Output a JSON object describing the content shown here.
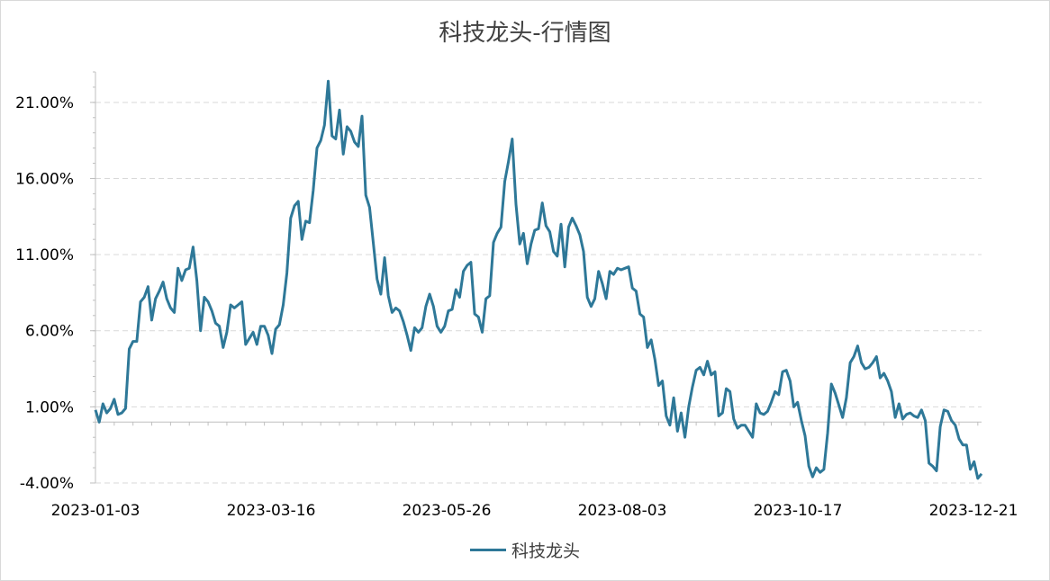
{
  "chart_data": {
    "type": "line",
    "title": "科技龙头-行情图",
    "y_ticks": [
      "21.00%",
      "16.00%",
      "11.00%",
      "6.00%",
      "1.00%",
      "-4.00%"
    ],
    "y_values": [
      21,
      16,
      11,
      6,
      1,
      -4
    ],
    "ylim": [
      -4,
      23
    ],
    "x_ticks": [
      "2023-01-03",
      "2023-03-16",
      "2023-05-26",
      "2023-08-03",
      "2023-10-17",
      "2023-12-21"
    ],
    "grid": true,
    "legend_position": "bottom",
    "series": [
      {
        "name": "科技龙头",
        "color": "#2e7898",
        "values": [
          0.8,
          0,
          1.2,
          0.6,
          0.9,
          1.5,
          0.5,
          0.6,
          0.9,
          4.8,
          5.3,
          5.3,
          7.9,
          8.2,
          8.9,
          6.7,
          8.1,
          8.6,
          9.2,
          8.1,
          7.5,
          7.2,
          10.1,
          9.3,
          10,
          10.1,
          11.5,
          9.3,
          6,
          8.2,
          7.9,
          7.3,
          6.5,
          6.3,
          4.9,
          5.9,
          7.7,
          7.5,
          7.7,
          7.9,
          5.1,
          5.5,
          5.9,
          5.1,
          6.3,
          6.3,
          5.7,
          4.5,
          6.1,
          6.4,
          7.7,
          9.8,
          13.4,
          14.2,
          14.5,
          12,
          13.2,
          13.1,
          15.2,
          18,
          18.5,
          19.5,
          22.4,
          18.8,
          18.6,
          20.5,
          17.6,
          19.4,
          19.1,
          18.4,
          18.1,
          20.1,
          14.9,
          14.1,
          11.8,
          9.4,
          8.4,
          10.8,
          8.3,
          7.2,
          7.5,
          7.3,
          6.6,
          5.7,
          4.7,
          6.2,
          5.9,
          6.2,
          7.6,
          8.4,
          7.6,
          6.3,
          5.9,
          6.3,
          7.3,
          7.4,
          8.7,
          8.2,
          9.9,
          10.3,
          10.5,
          7.1,
          6.9,
          5.9,
          8.1,
          8.3,
          11.8,
          12.4,
          12.8,
          15.8,
          17.1,
          18.6,
          14.3,
          11.7,
          12.4,
          10.4,
          11.7,
          12.6,
          12.7,
          14.4,
          12.9,
          12.5,
          11.2,
          10.9,
          13,
          10.2,
          12.8,
          13.4,
          12.9,
          12.3,
          11.2,
          8.2,
          7.6,
          8.1,
          9.9,
          9.1,
          8.1,
          9.9,
          9.7,
          10.1,
          10,
          10.1,
          10.2,
          8.8,
          8.6,
          7.1,
          6.9,
          4.9,
          5.4,
          4.1,
          2.4,
          2.7,
          0.4,
          -0.2,
          1.6,
          -0.6,
          0.6,
          -1,
          1,
          2.3,
          3.4,
          3.6,
          3.1,
          4,
          3.1,
          3.3,
          0.4,
          0.6,
          2.2,
          2,
          0.2,
          -0.4,
          -0.2,
          -0.2,
          -0.6,
          -1,
          1.2,
          0.6,
          0.5,
          0.7,
          1.3,
          2,
          1.8,
          3.3,
          3.4,
          2.7,
          1,
          1.3,
          0.1,
          -0.9,
          -2.9,
          -3.6,
          -3,
          -3.3,
          -3.1,
          -0.7,
          2.5,
          1.9,
          1.1,
          0.3,
          1.6,
          3.9,
          4.3,
          5,
          3.9,
          3.5,
          3.6,
          3.9,
          4.3,
          2.9,
          3.2,
          2.7,
          2,
          0.3,
          1.2,
          0.2,
          0.5,
          0.6,
          0.4,
          0.3,
          0.8,
          0.1,
          -2.7,
          -2.9,
          -3.2,
          -0.3,
          0.8,
          0.7,
          0.1,
          -0.2,
          -1.1,
          -1.5,
          -1.5,
          -3.1,
          -2.6,
          -3.7,
          -3.4
        ]
      }
    ]
  }
}
